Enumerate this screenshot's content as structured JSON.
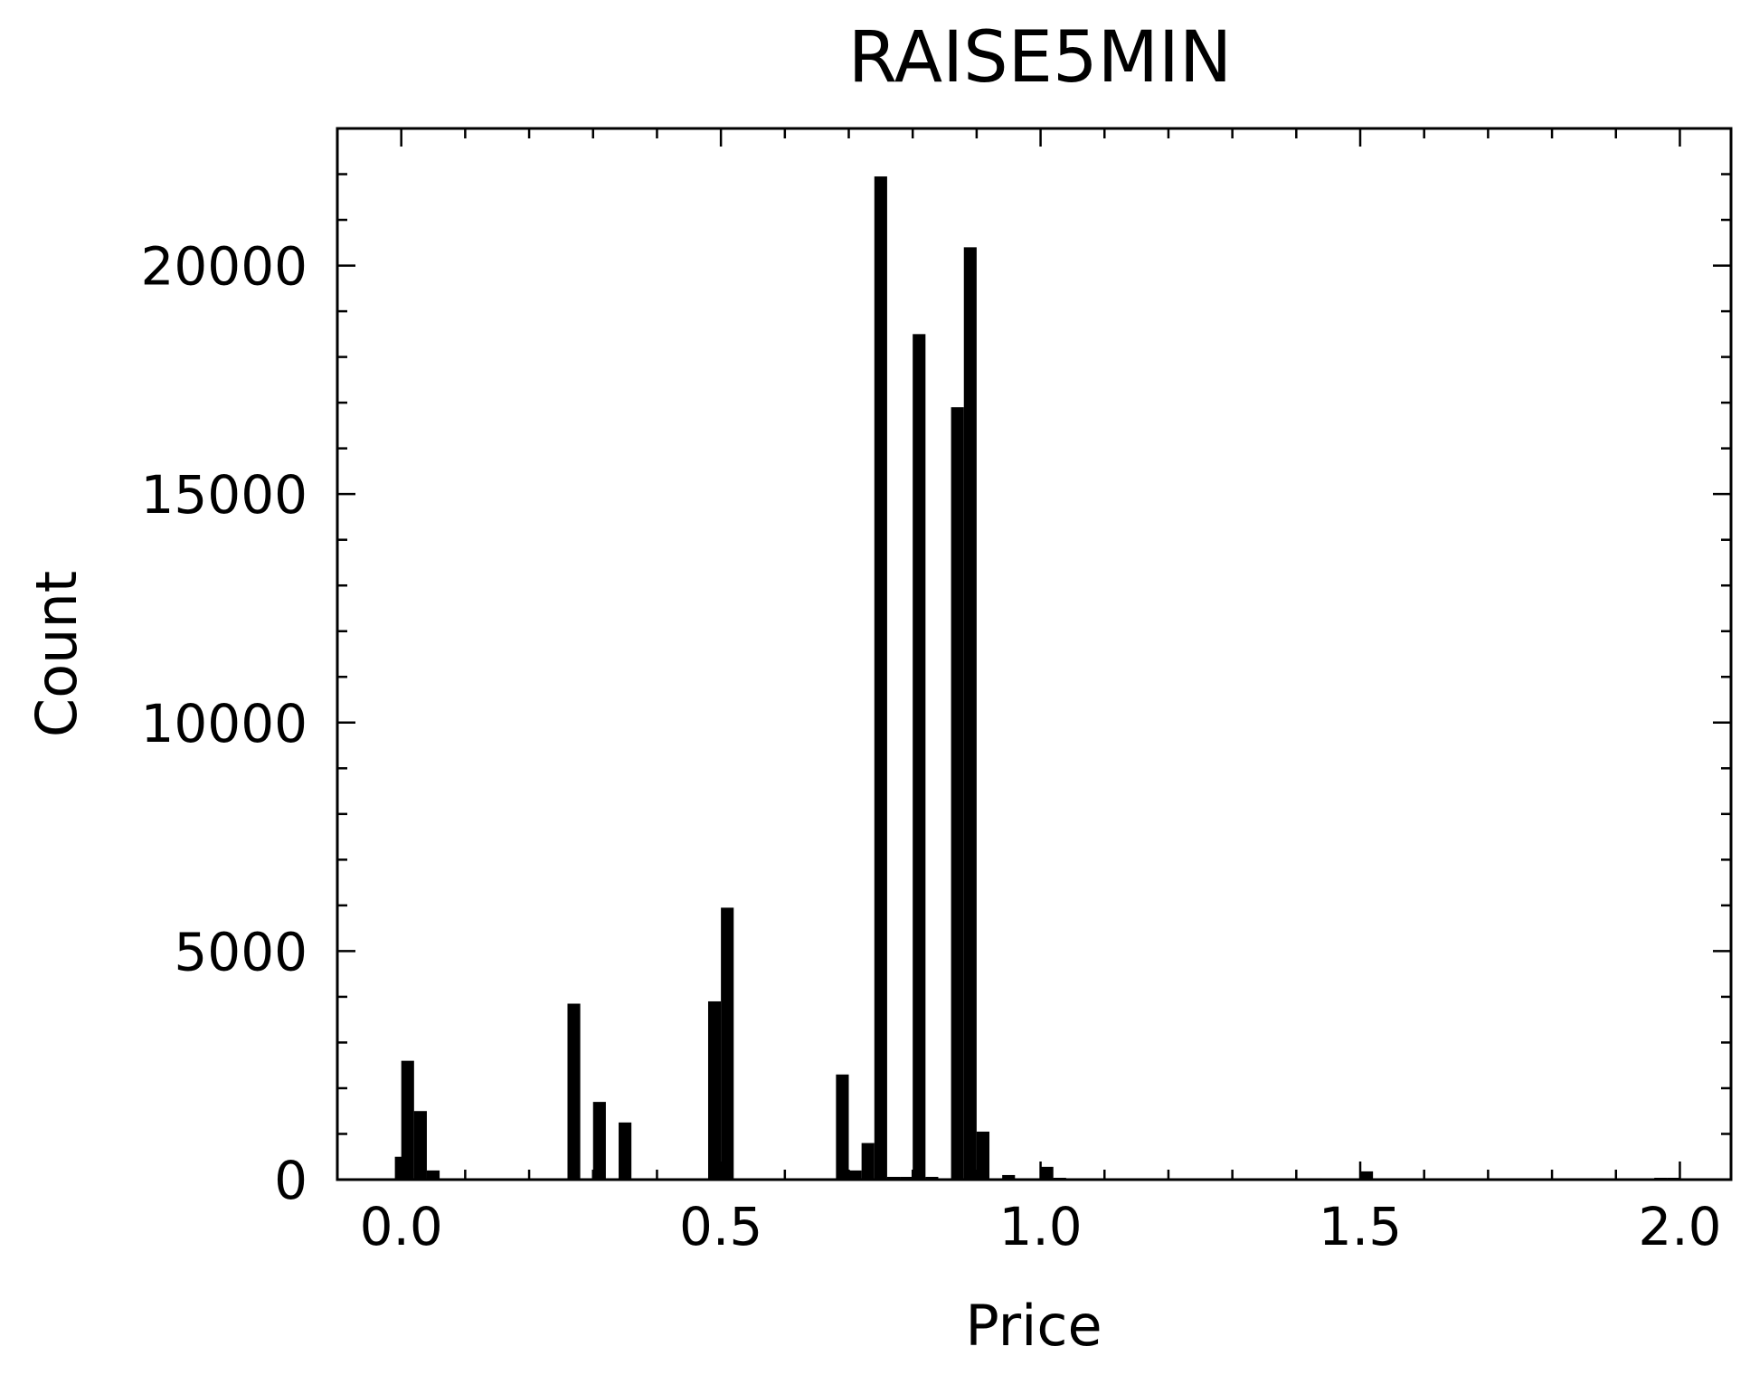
{
  "chart_data": {
    "type": "bar",
    "title": "RAISE5MIN",
    "xlabel": "Price",
    "ylabel": "Count",
    "xlim": [
      -0.1,
      2.08
    ],
    "ylim": [
      0,
      23000
    ],
    "xticks": [
      0.0,
      0.5,
      1.0,
      1.5,
      2.0
    ],
    "xtick_labels": [
      "0.0",
      "0.5",
      "1.0",
      "1.5",
      "2.0"
    ],
    "yticks": [
      0,
      5000,
      10000,
      15000,
      20000
    ],
    "ytick_labels": [
      "0",
      "5000",
      "10000",
      "15000",
      "20000"
    ],
    "grid": false,
    "bar_color": "#000000",
    "bin_width": 0.02,
    "bins": [
      {
        "x": -0.01,
        "count": 500
      },
      {
        "x": 0.0,
        "count": 2600
      },
      {
        "x": 0.02,
        "count": 1500
      },
      {
        "x": 0.04,
        "count": 200
      },
      {
        "x": 0.26,
        "count": 3850
      },
      {
        "x": 0.3,
        "count": 1700
      },
      {
        "x": 0.34,
        "count": 1250
      },
      {
        "x": 0.48,
        "count": 3900
      },
      {
        "x": 0.5,
        "count": 5950
      },
      {
        "x": 0.68,
        "count": 2300
      },
      {
        "x": 0.7,
        "count": 200
      },
      {
        "x": 0.72,
        "count": 800
      },
      {
        "x": 0.74,
        "count": 21950
      },
      {
        "x": 0.76,
        "count": 60
      },
      {
        "x": 0.78,
        "count": 60
      },
      {
        "x": 0.8,
        "count": 18500
      },
      {
        "x": 0.82,
        "count": 60
      },
      {
        "x": 0.86,
        "count": 16900
      },
      {
        "x": 0.88,
        "count": 20400
      },
      {
        "x": 0.9,
        "count": 1050
      },
      {
        "x": 0.94,
        "count": 100
      },
      {
        "x": 1.0,
        "count": 280
      },
      {
        "x": 1.02,
        "count": 40
      },
      {
        "x": 1.42,
        "count": 30
      },
      {
        "x": 1.5,
        "count": 180
      },
      {
        "x": 1.86,
        "count": 30
      },
      {
        "x": 1.96,
        "count": 40
      },
      {
        "x": 1.98,
        "count": 40
      }
    ]
  }
}
